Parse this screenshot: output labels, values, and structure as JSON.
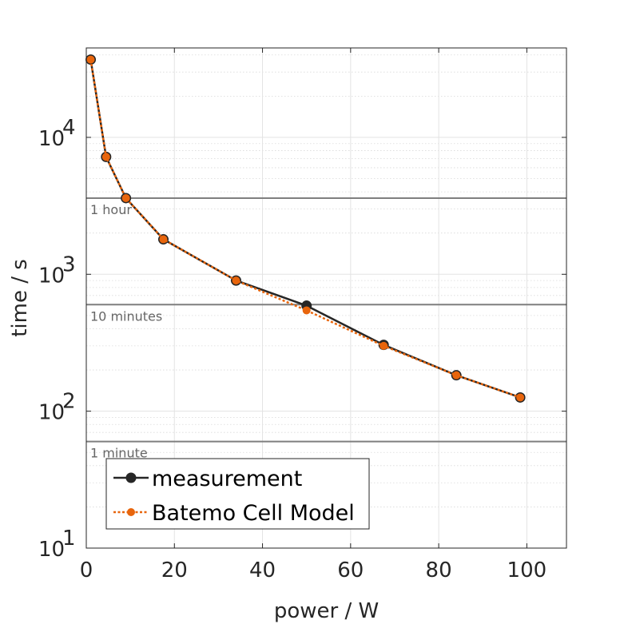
{
  "chart_data": {
    "type": "line",
    "xlabel": "power / W",
    "ylabel": "time / s",
    "xlim": [
      0,
      109
    ],
    "ylim": [
      10,
      45000
    ],
    "yscale": "log",
    "x_ticks": [
      {
        "value": 0,
        "label": "0"
      },
      {
        "value": 20,
        "label": "20"
      },
      {
        "value": 40,
        "label": "40"
      },
      {
        "value": 60,
        "label": "60"
      },
      {
        "value": 80,
        "label": "80"
      },
      {
        "value": 100,
        "label": "100"
      }
    ],
    "y_ticks": [
      {
        "value": 10,
        "base": "10",
        "exp": "1"
      },
      {
        "value": 100,
        "base": "10",
        "exp": "2"
      },
      {
        "value": 1000,
        "base": "10",
        "exp": "3"
      },
      {
        "value": 10000,
        "base": "10",
        "exp": "4"
      }
    ],
    "grid": true,
    "minor_grid": true,
    "legend_position": "bottom-left",
    "reference_lines": [
      {
        "y": 3600,
        "label": "1 hour"
      },
      {
        "y": 600,
        "label": "10 minutes"
      },
      {
        "y": 60,
        "label": "1 minute"
      }
    ],
    "series": [
      {
        "name": "measurement",
        "color": "#262626",
        "style": "solid",
        "x": [
          1,
          4.5,
          9,
          17.5,
          34,
          50,
          67.5,
          84,
          98.5
        ],
        "y": [
          37000,
          7200,
          3600,
          1800,
          900,
          590,
          305,
          183,
          126
        ]
      },
      {
        "name": "Batemo Cell Model",
        "color": "#e8650c",
        "style": "dotted",
        "x": [
          1,
          4.5,
          9,
          17.5,
          34,
          50,
          67.5,
          84,
          98.5
        ],
        "y": [
          37000,
          7200,
          3600,
          1800,
          900,
          545,
          300,
          183,
          126
        ]
      }
    ]
  }
}
